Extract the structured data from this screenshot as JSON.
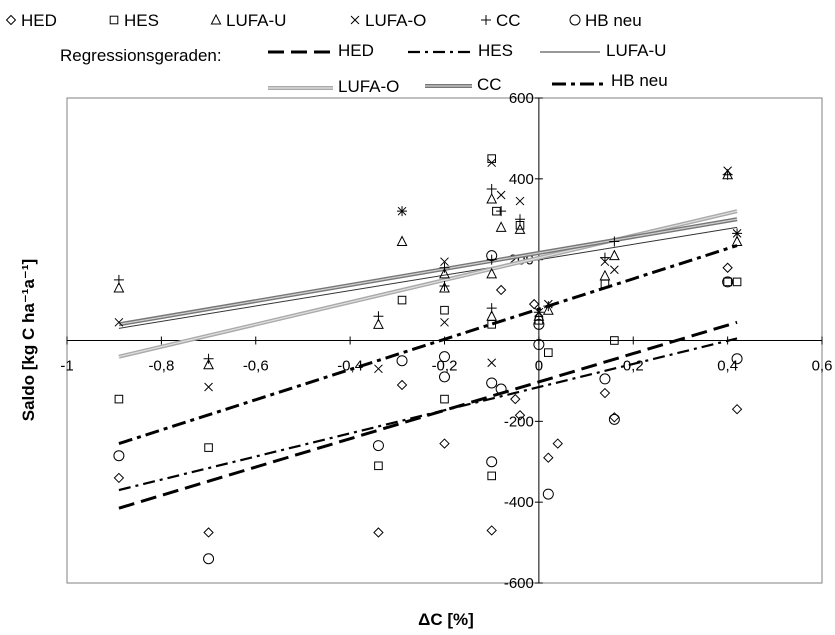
{
  "chart_data": {
    "type": "scatter",
    "xlabel": "ΔC [%]",
    "ylabel": "Saldo [kg C ha⁻¹a⁻¹]",
    "xlim": [
      -1,
      0.6
    ],
    "ylim": [
      -600,
      600
    ],
    "x_ticks": [
      -1,
      -0.8,
      -0.6,
      -0.4,
      -0.2,
      0,
      0.2,
      0.4,
      0.6
    ],
    "x_tick_labels": [
      "-1",
      "-0,8",
      "-0,6",
      "-0,4",
      "-0,2",
      "0",
      "0,2",
      "0,4",
      "0,6"
    ],
    "y_ticks": [
      -600,
      -400,
      -200,
      200,
      400,
      600
    ],
    "y_tick_labels": [
      "-600",
      "-400",
      "-200",
      "200",
      "400",
      "600"
    ],
    "grid": false,
    "legend_position": "top",
    "regression_title": "Regressionsgeraden:",
    "series": [
      {
        "name": "HED",
        "marker": "diamond-icon",
        "marker_symbol": "◇",
        "points": [
          [
            -0.89,
            -340
          ],
          [
            -0.7,
            -475
          ],
          [
            -0.34,
            -475
          ],
          [
            -0.29,
            -110
          ],
          [
            -0.2,
            -255
          ],
          [
            -0.1,
            -470
          ],
          [
            -0.08,
            125
          ],
          [
            -0.05,
            -145
          ],
          [
            -0.04,
            -185
          ],
          [
            -0.01,
            90
          ],
          [
            0.02,
            -290
          ],
          [
            0.04,
            -255
          ],
          [
            0.14,
            -130
          ],
          [
            0.16,
            -190
          ],
          [
            0.4,
            180
          ],
          [
            0.42,
            -170
          ]
        ],
        "regression": {
          "style": "long-dash",
          "x": [
            -0.89,
            0.42
          ],
          "y": [
            -415,
            45
          ]
        }
      },
      {
        "name": "HES",
        "marker": "square-icon",
        "marker_symbol": "□",
        "points": [
          [
            -0.89,
            -145
          ],
          [
            -0.7,
            -265
          ],
          [
            -0.34,
            -310
          ],
          [
            -0.29,
            100
          ],
          [
            -0.2,
            -145
          ],
          [
            -0.2,
            75
          ],
          [
            -0.1,
            -335
          ],
          [
            -0.1,
            450
          ],
          [
            -0.1,
            40
          ],
          [
            -0.09,
            320
          ],
          [
            -0.04,
            285
          ],
          [
            0.0,
            50
          ],
          [
            0.02,
            -30
          ],
          [
            0.16,
            0
          ],
          [
            0.14,
            140
          ],
          [
            0.4,
            145
          ],
          [
            0.42,
            145
          ]
        ],
        "regression": {
          "style": "dash-dot",
          "x": [
            -0.89,
            0.42
          ],
          "y": [
            -370,
            5
          ]
        }
      },
      {
        "name": "LUFA-U",
        "marker": "triangle-icon",
        "marker_symbol": "△",
        "points": [
          [
            -0.89,
            130
          ],
          [
            -0.7,
            -60
          ],
          [
            -0.34,
            40
          ],
          [
            -0.29,
            245
          ],
          [
            -0.2,
            130
          ],
          [
            -0.2,
            165
          ],
          [
            -0.1,
            165
          ],
          [
            -0.1,
            350
          ],
          [
            -0.1,
            60
          ],
          [
            -0.08,
            280
          ],
          [
            -0.04,
            275
          ],
          [
            0.0,
            60
          ],
          [
            0.02,
            75
          ],
          [
            0.14,
            160
          ],
          [
            0.16,
            210
          ],
          [
            0.4,
            410
          ],
          [
            0.42,
            245
          ]
        ],
        "regression": {
          "style": "thin-solid",
          "x": [
            -0.89,
            0.42
          ],
          "y": [
            30,
            280
          ]
        }
      },
      {
        "name": "LUFA-O",
        "marker": "cross-icon",
        "marker_symbol": "×",
        "points": [
          [
            -0.89,
            45
          ],
          [
            -0.7,
            -115
          ],
          [
            -0.34,
            -70
          ],
          [
            -0.29,
            320
          ],
          [
            -0.2,
            195
          ],
          [
            -0.2,
            45
          ],
          [
            -0.1,
            440
          ],
          [
            -0.1,
            -55
          ],
          [
            -0.08,
            360
          ],
          [
            -0.04,
            345
          ],
          [
            0.0,
            70
          ],
          [
            0.02,
            90
          ],
          [
            0.14,
            195
          ],
          [
            0.16,
            175
          ],
          [
            0.4,
            420
          ],
          [
            0.42,
            265
          ]
        ],
        "regression": {
          "style": "double-grey",
          "x": [
            -0.89,
            0.42
          ],
          "y": [
            -40,
            320
          ]
        }
      },
      {
        "name": "CC",
        "marker": "plus-icon",
        "marker_symbol": "+",
        "points": [
          [
            -0.89,
            150
          ],
          [
            -0.7,
            -45
          ],
          [
            -0.34,
            60
          ],
          [
            -0.29,
            320
          ],
          [
            -0.2,
            135
          ],
          [
            -0.2,
            180
          ],
          [
            -0.1,
            200
          ],
          [
            -0.1,
            80
          ],
          [
            -0.1,
            375
          ],
          [
            -0.08,
            320
          ],
          [
            -0.04,
            300
          ],
          [
            0.0,
            70
          ],
          [
            0.02,
            85
          ],
          [
            0.14,
            205
          ],
          [
            0.16,
            245
          ],
          [
            0.4,
            410
          ],
          [
            0.42,
            265
          ]
        ],
        "regression": {
          "style": "double-dark",
          "x": [
            -0.89,
            0.42
          ],
          "y": [
            40,
            300
          ]
        }
      },
      {
        "name": "HB neu",
        "marker": "circle-icon",
        "marker_symbol": "○",
        "points": [
          [
            -0.89,
            -285
          ],
          [
            -0.7,
            -540
          ],
          [
            -0.34,
            -260
          ],
          [
            -0.29,
            -50
          ],
          [
            -0.2,
            -40
          ],
          [
            -0.2,
            -90
          ],
          [
            -0.1,
            -105
          ],
          [
            -0.1,
            -300
          ],
          [
            -0.1,
            210
          ],
          [
            -0.08,
            -120
          ],
          [
            0.0,
            40
          ],
          [
            0.0,
            -10
          ],
          [
            0.02,
            -380
          ],
          [
            0.14,
            -95
          ],
          [
            0.16,
            -195
          ],
          [
            0.4,
            145
          ],
          [
            0.42,
            -45
          ]
        ],
        "regression": {
          "style": "dash-dot-bold",
          "x": [
            -0.89,
            0.42
          ],
          "y": [
            -255,
            235
          ]
        }
      }
    ]
  }
}
